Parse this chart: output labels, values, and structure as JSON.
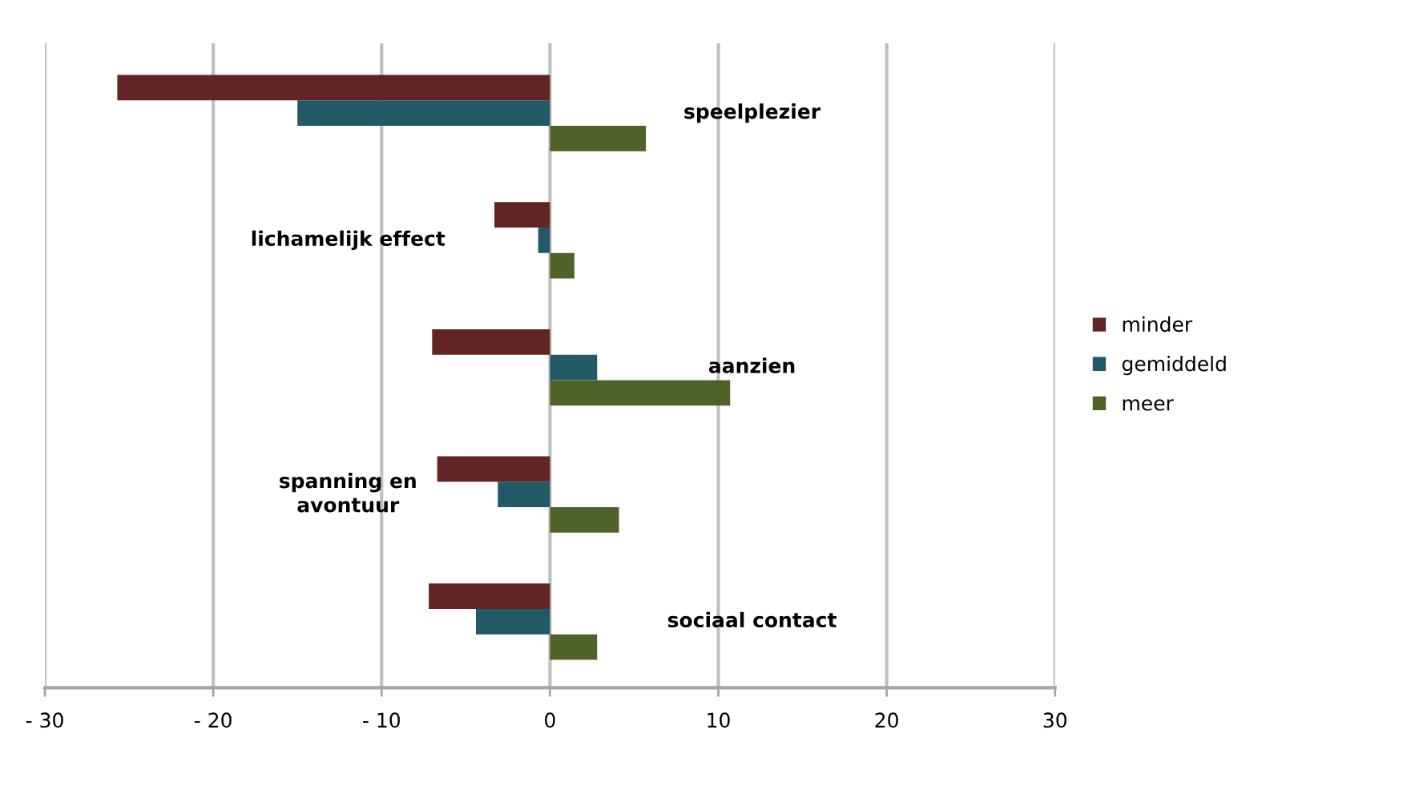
{
  "chart_data": {
    "type": "bar",
    "orientation": "horizontal",
    "categories": [
      "speelplezier",
      "lichamelijk effect",
      "aanzien",
      "spanning en\navontuur",
      "sociaal contact"
    ],
    "series": [
      {
        "name": "minder",
        "color": "#632523",
        "values": [
          -25.7,
          -3.3,
          -7.0,
          -6.7,
          -7.2
        ]
      },
      {
        "name": "gemiddeld",
        "color": "#215967",
        "values": [
          -15.0,
          -0.7,
          2.8,
          -3.1,
          -4.4
        ]
      },
      {
        "name": "meer",
        "color": "#4f6228",
        "values": [
          5.7,
          1.45,
          10.7,
          4.1,
          2.8
        ]
      }
    ],
    "xlim": [
      -30,
      30
    ],
    "xticks": [
      {
        "value": -30,
        "label": "- 30"
      },
      {
        "value": -20,
        "label": "- 20"
      },
      {
        "value": -10,
        "label": "- 10"
      },
      0,
      10,
      20,
      30
    ],
    "grid": "x",
    "legend": "right"
  }
}
